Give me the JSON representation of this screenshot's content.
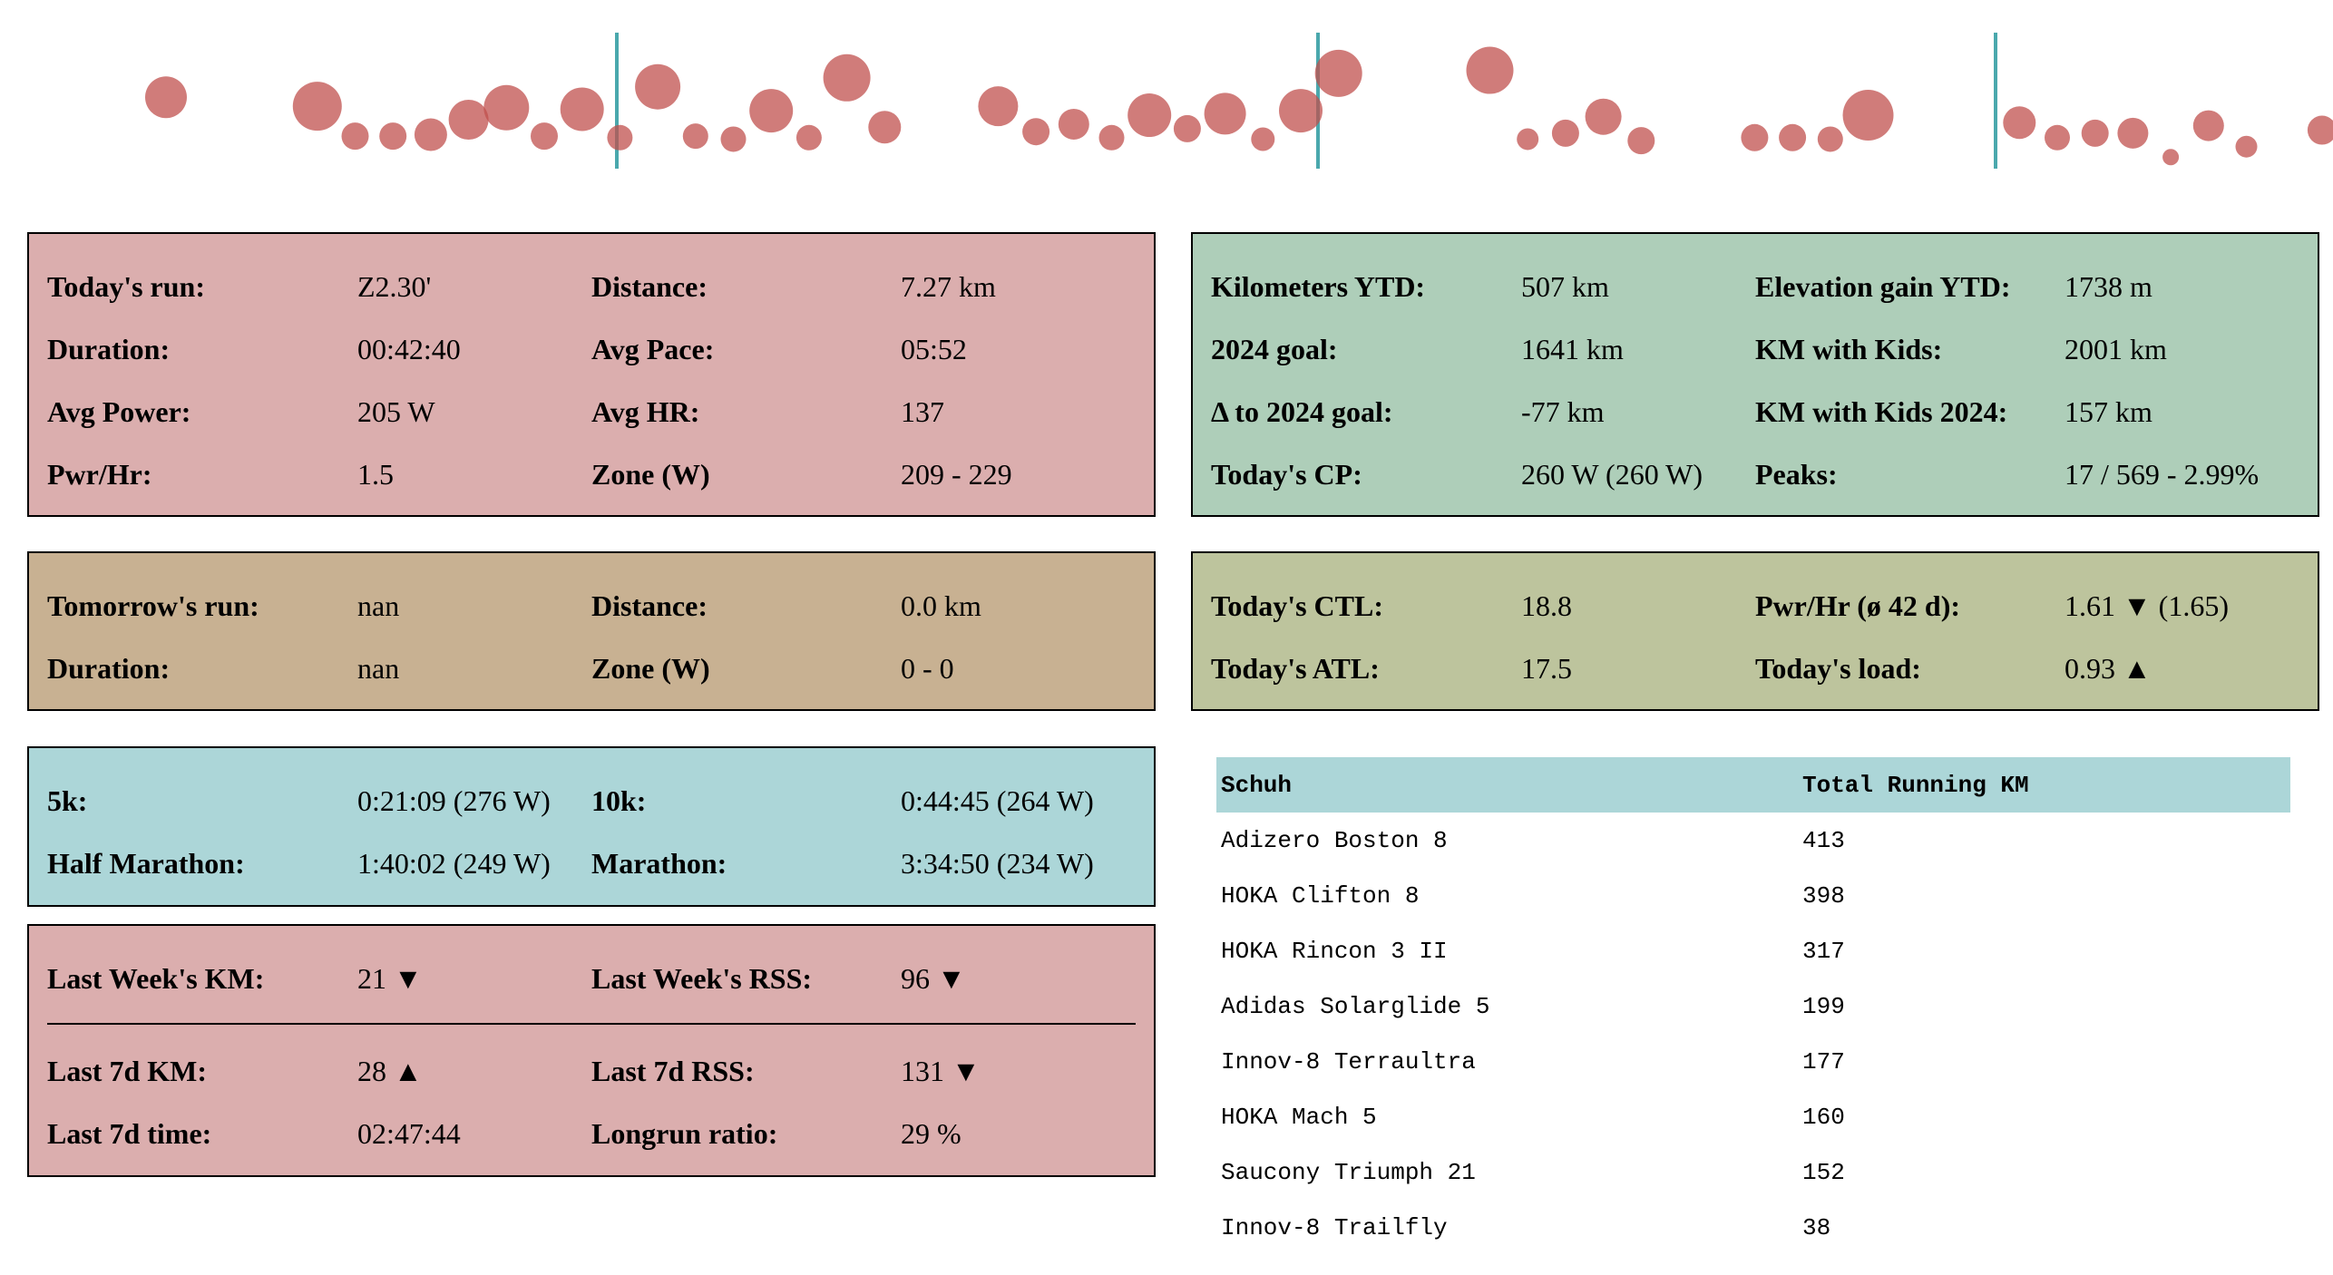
{
  "colors": {
    "bubble": "#c0504d",
    "divider_line": "#4aa8ad",
    "panel_red": "#dbaeae",
    "panel_tan": "#c8b192",
    "panel_teal": "#acd6d8",
    "panel_green": "#aeceb9",
    "panel_olive": "#bdc49d"
  },
  "today": {
    "rows": [
      [
        "Today's run:",
        "Z2.30'",
        "Distance:",
        "7.27 km"
      ],
      [
        "Duration:",
        "00:42:40",
        "Avg Pace:",
        "05:52"
      ],
      [
        "Avg Power:",
        "205 W",
        "Avg HR:",
        "137"
      ],
      [
        "Pwr/Hr:",
        "1.5",
        "Zone (W)",
        "209 - 229"
      ]
    ]
  },
  "tomorrow": {
    "rows": [
      [
        "Tomorrow's run:",
        "nan",
        "Distance:",
        "0.0 km"
      ],
      [
        "Duration:",
        "nan",
        "Zone (W)",
        "0 - 0"
      ]
    ]
  },
  "predictions": {
    "rows": [
      [
        "5k:",
        "0:21:09 (276 W)",
        "10k:",
        "0:44:45 (264 W)"
      ],
      [
        "Half Marathon:",
        "1:40:02 (249 W)",
        "Marathon:",
        "3:34:50 (234 W)"
      ]
    ]
  },
  "weekly": {
    "top_rows": [
      [
        "Last Week's KM:",
        "21 ▼",
        "Last Week's RSS:",
        "96 ▼"
      ]
    ],
    "bottom_rows": [
      [
        "Last 7d KM:",
        "28 ▲",
        "Last 7d RSS:",
        "131 ▼"
      ],
      [
        "Last 7d time:",
        "02:47:44",
        "Longrun ratio:",
        "29 %"
      ]
    ]
  },
  "ytd": {
    "rows": [
      [
        "Kilometers YTD:",
        "507 km",
        "Elevation gain YTD:",
        "1738 m"
      ],
      [
        "2024 goal:",
        "1641 km",
        "KM with Kids:",
        "2001 km"
      ],
      [
        "Δ to 2024 goal:",
        "-77 km",
        "KM with Kids 2024:",
        "157 km"
      ],
      [
        "Today's CP:",
        "260 W (260 W)",
        "Peaks:",
        "17 / 569 - 2.99%"
      ]
    ]
  },
  "fitness": {
    "rows": [
      [
        "Today's CTL:",
        "18.8",
        "Pwr/Hr (ø 42 d):",
        "1.61 ▼ (1.65)"
      ],
      [
        "Today's ATL:",
        "17.5",
        "Today's load:",
        "0.93 ▲"
      ]
    ]
  },
  "shoes": {
    "headers": [
      "Schuh",
      "Total Running KM"
    ],
    "rows": [
      [
        "Adizero Boston 8",
        "413"
      ],
      [
        "HOKA Clifton 8",
        "398"
      ],
      [
        "HOKA Rincon 3 II",
        "317"
      ],
      [
        "Adidas Solarglide 5",
        "199"
      ],
      [
        "Innov-8 Terraultra",
        "177"
      ],
      [
        "HOKA Mach 5",
        "160"
      ],
      [
        "Saucony Triumph 21",
        "152"
      ],
      [
        "Innov-8 Trailfly",
        "38"
      ]
    ]
  },
  "chart_data": {
    "type": "scatter",
    "xlabel": "",
    "ylabel": "",
    "grid": false,
    "series": [
      {
        "points": [
          [
            1,
            65,
            23
          ],
          [
            5,
            71,
            27
          ],
          [
            6,
            91,
            15
          ],
          [
            7,
            91,
            15
          ],
          [
            8,
            90,
            18
          ],
          [
            9,
            80,
            22
          ],
          [
            10,
            72,
            25
          ],
          [
            11,
            91,
            15
          ],
          [
            12,
            73,
            24
          ],
          [
            13,
            92,
            14
          ],
          [
            14,
            58,
            25
          ],
          [
            15,
            91,
            14
          ],
          [
            16,
            93,
            14
          ],
          [
            17,
            74,
            24
          ],
          [
            18,
            92,
            14
          ],
          [
            19,
            52,
            26
          ],
          [
            20,
            85,
            18
          ],
          [
            23,
            71,
            22
          ],
          [
            24,
            88,
            15
          ],
          [
            25,
            83,
            17
          ],
          [
            26,
            92,
            14
          ],
          [
            27,
            77,
            24
          ],
          [
            28,
            86,
            15
          ],
          [
            29,
            76,
            23
          ],
          [
            30,
            93,
            13
          ],
          [
            31,
            74,
            24
          ],
          [
            32,
            49,
            26
          ],
          [
            36,
            47,
            26
          ],
          [
            37,
            93,
            12
          ],
          [
            38,
            89,
            15
          ],
          [
            39,
            78,
            20
          ],
          [
            40,
            94,
            15
          ],
          [
            43,
            92,
            15
          ],
          [
            44,
            92,
            15
          ],
          [
            45,
            93,
            14
          ],
          [
            46,
            77,
            28
          ],
          [
            50,
            82,
            18
          ],
          [
            51,
            92,
            14
          ],
          [
            52,
            89,
            15
          ],
          [
            53,
            89,
            17
          ],
          [
            54,
            105,
            9
          ],
          [
            55,
            84,
            17
          ],
          [
            56,
            98,
            12
          ],
          [
            58,
            87,
            16
          ]
        ]
      }
    ],
    "vertical_markers": [
      11,
      31,
      52
    ]
  }
}
